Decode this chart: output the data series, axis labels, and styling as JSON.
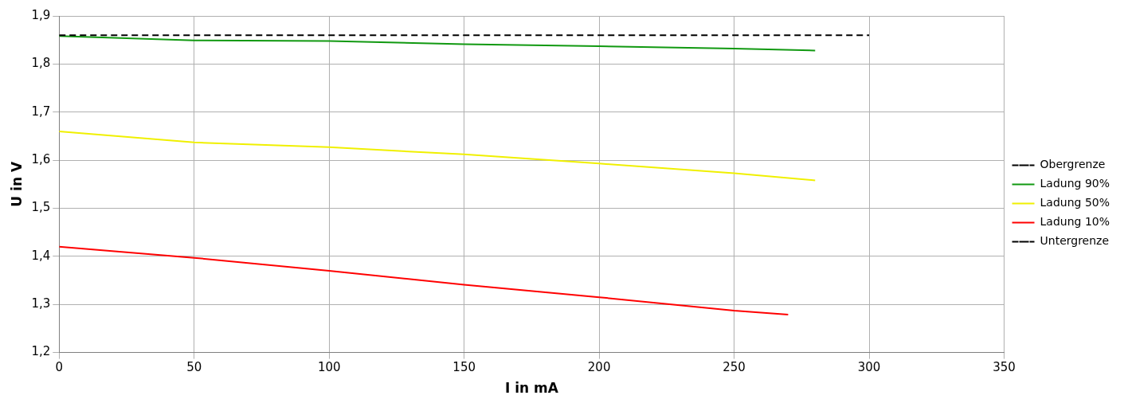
{
  "chart_data": {
    "type": "line",
    "xlabel": "I in mA",
    "ylabel": "U in V",
    "xlim": [
      0,
      350
    ],
    "xticks": [
      0,
      50,
      100,
      150,
      200,
      250,
      300,
      350
    ],
    "ylim": [
      1.2,
      1.9
    ],
    "yticks": [
      {
        "value": 1.2,
        "label": "1,2"
      },
      {
        "value": 1.3,
        "label": "1,3"
      },
      {
        "value": 1.4,
        "label": "1,4"
      },
      {
        "value": 1.5,
        "label": "1,5"
      },
      {
        "value": 1.6,
        "label": "1,6"
      },
      {
        "value": 1.7,
        "label": "1,7"
      },
      {
        "value": 1.8,
        "label": "1,8"
      },
      {
        "value": 1.9,
        "label": "1,9"
      }
    ],
    "grid": true,
    "legend": "right",
    "marker": "none",
    "series": [
      {
        "name": "Obergrenze",
        "color": "#000000",
        "line_style": "dashed",
        "x": [
          0,
          300
        ],
        "values": [
          1.86,
          1.86
        ]
      },
      {
        "name": "Ladung 90%",
        "color": "#119911",
        "line_style": "solid",
        "x": [
          0,
          50,
          100,
          150,
          200,
          250,
          280
        ],
        "values": [
          1.858,
          1.849,
          1.848,
          1.841,
          1.837,
          1.832,
          1.828
        ]
      },
      {
        "name": "Ladung 50%",
        "color": "#f0f000",
        "line_style": "solid",
        "x": [
          0,
          50,
          100,
          150,
          200,
          250,
          280
        ],
        "values": [
          1.66,
          1.637,
          1.627,
          1.612,
          1.593,
          1.573,
          1.558
        ]
      },
      {
        "name": "Ladung 10%",
        "color": "#ff0000",
        "line_style": "solid",
        "x": [
          0,
          50,
          100,
          150,
          200,
          250,
          270
        ],
        "values": [
          1.42,
          1.397,
          1.37,
          1.341,
          1.315,
          1.287,
          1.279
        ]
      },
      {
        "name": "Untergrenze",
        "color": "#000000",
        "line_style": "dashed"
      }
    ]
  }
}
